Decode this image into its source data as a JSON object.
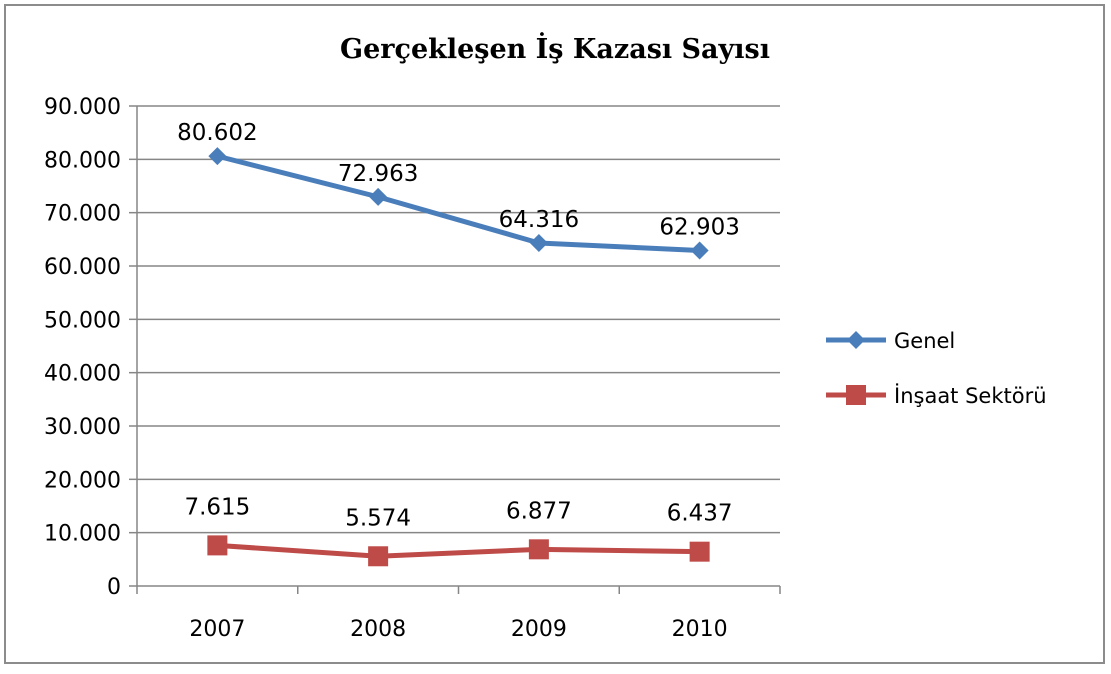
{
  "chart_data": {
    "type": "line",
    "title": "Gerçekleşen İş Kazası Sayısı",
    "xlabel": "",
    "ylabel": "",
    "categories": [
      "2007",
      "2008",
      "2009",
      "2010"
    ],
    "ylim": [
      0,
      90000
    ],
    "y_ticks": [
      0,
      10000,
      20000,
      30000,
      40000,
      50000,
      60000,
      70000,
      80000,
      90000
    ],
    "y_tick_labels": [
      "0",
      "10.000",
      "20.000",
      "30.000",
      "40.000",
      "50.000",
      "60.000",
      "70.000",
      "80.000",
      "90.000"
    ],
    "grid": true,
    "legend_position": "right",
    "series": [
      {
        "name": "Genel",
        "values": [
          80602,
          72963,
          64316,
          62903
        ],
        "labels": [
          "80.602",
          "72.963",
          "64.316",
          "62.903"
        ],
        "color": "#4a7ebb",
        "marker": "diamond"
      },
      {
        "name": "İnşaat Sektörü",
        "values": [
          7615,
          5574,
          6877,
          6437
        ],
        "labels": [
          "7.615",
          "5.574",
          "6.877",
          "6.437"
        ],
        "color": "#be4b48",
        "marker": "square"
      }
    ]
  }
}
